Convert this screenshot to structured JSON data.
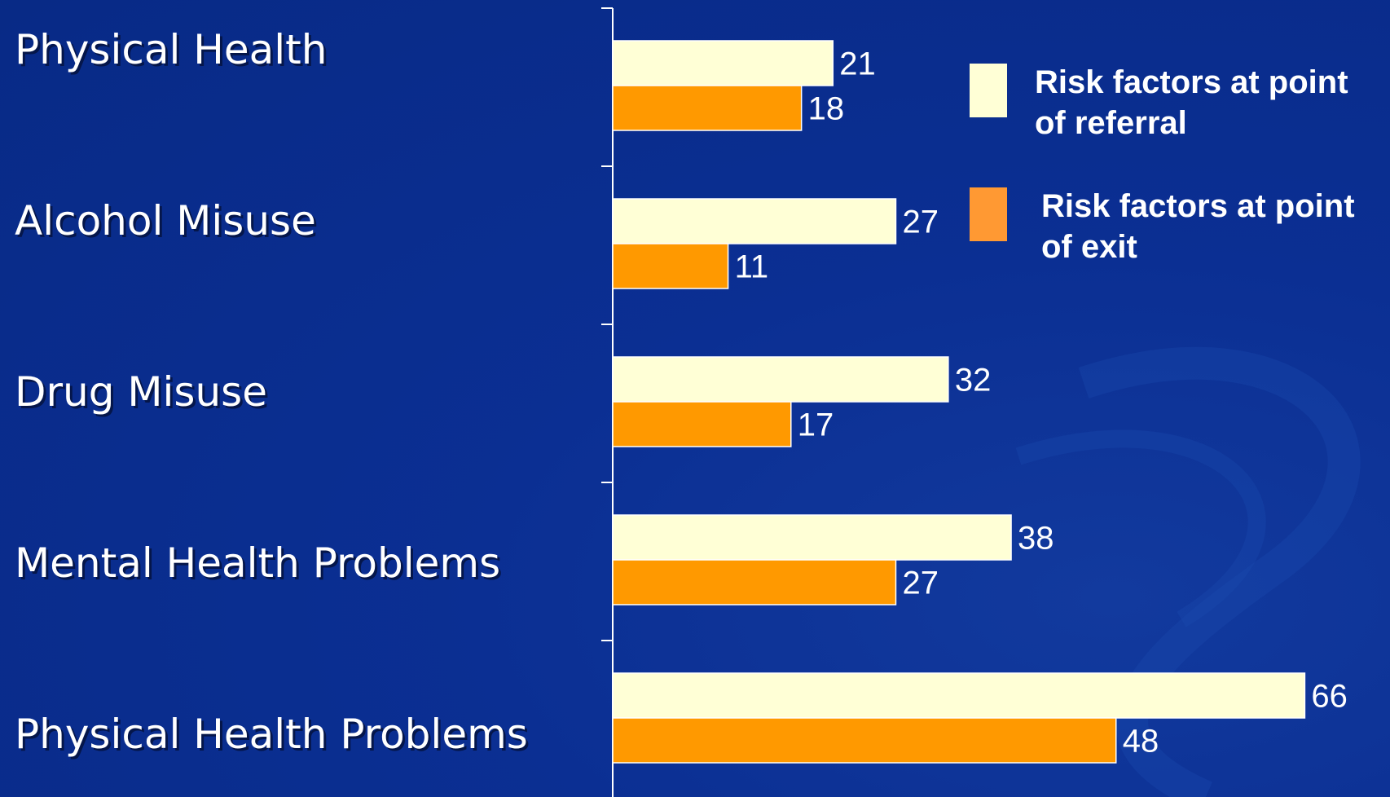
{
  "chart_data": {
    "type": "bar",
    "orientation": "horizontal",
    "categories": [
      "Physical Health",
      "Alcohol Misuse",
      "Drug Misuse",
      "Mental Health Problems",
      "Physical Health Problems"
    ],
    "series": [
      {
        "name": "Risk factors at point of referral",
        "values": [
          21,
          27,
          32,
          38,
          66
        ],
        "color": "#ffffd6"
      },
      {
        "name": "Risk factors at point of exit",
        "values": [
          18,
          11,
          17,
          27,
          48
        ],
        "color": "#ff9900"
      }
    ],
    "legend_lines": [
      [
        "Risk factors at point",
        "of referral"
      ],
      [
        "Risk factors at point",
        "of exit"
      ]
    ],
    "legend_swatch_colors": [
      "#ffffd6",
      "#ff9933"
    ],
    "xlim": [
      0,
      70
    ],
    "legend_position": "top-right",
    "grid": false,
    "background": "#0a2a8c"
  }
}
